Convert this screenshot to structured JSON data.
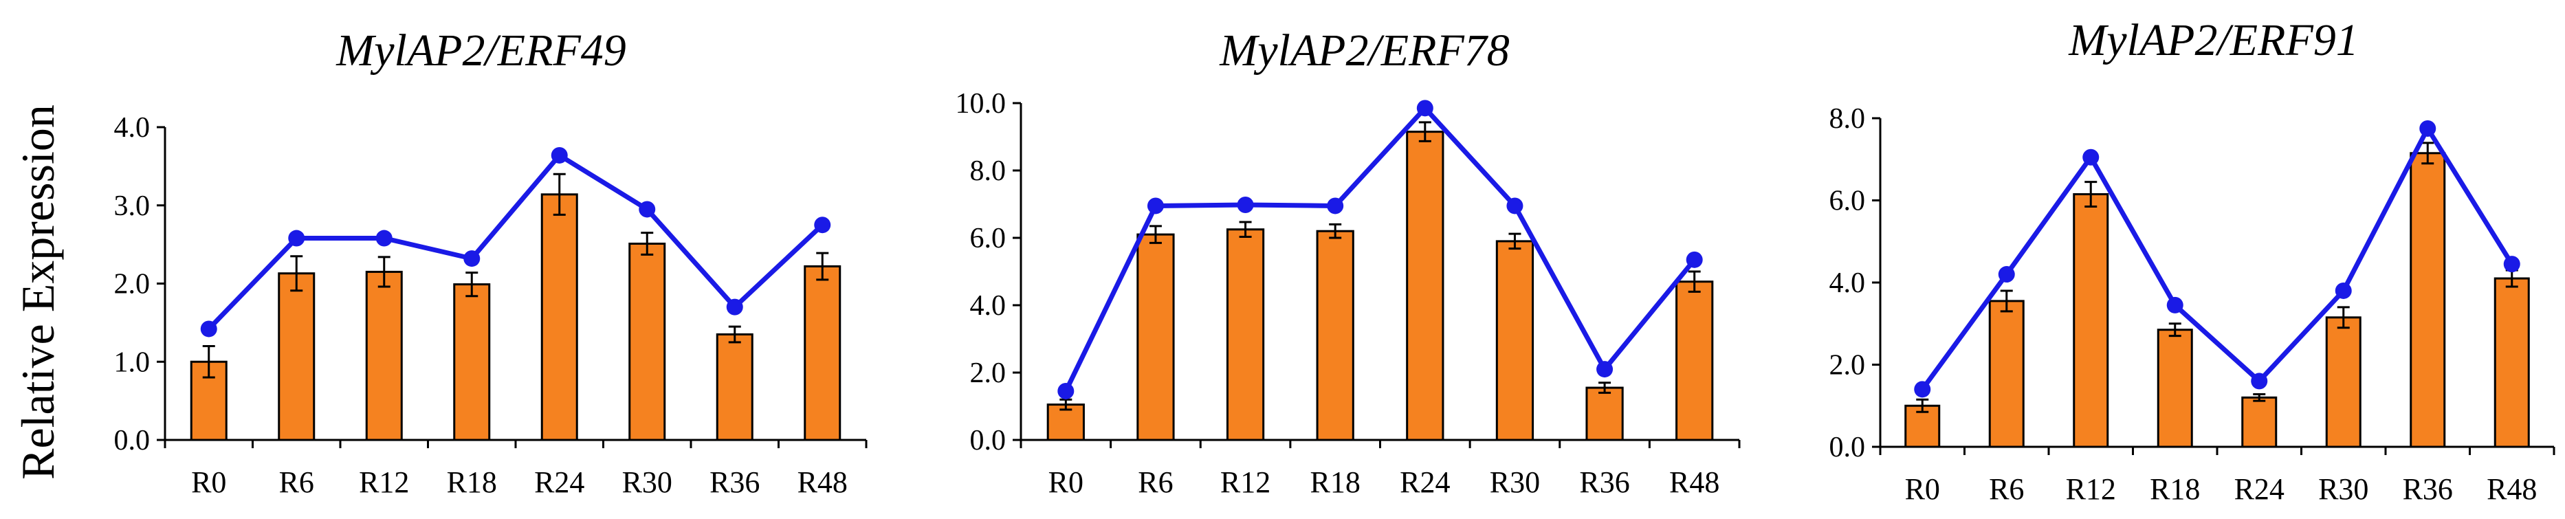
{
  "ylabel": "Relative Expression",
  "colors": {
    "bar": "#F58220",
    "line": "#1A1AE6",
    "axis": "#000000"
  },
  "chart_data": [
    {
      "type": "bar+line",
      "title": "MylAP2/ERF49",
      "ylabel": "Relative Expression",
      "categories": [
        "R0",
        "R6",
        "R12",
        "R18",
        "R24",
        "R30",
        "R36",
        "R48"
      ],
      "ylim": [
        0,
        4
      ],
      "yticks": [
        "0.0",
        "1.0",
        "2.0",
        "3.0",
        "4.0"
      ],
      "values": [
        1.0,
        2.13,
        2.15,
        1.99,
        3.14,
        2.51,
        1.35,
        2.22
      ],
      "errors": [
        0.2,
        0.22,
        0.19,
        0.15,
        0.26,
        0.14,
        0.1,
        0.17
      ],
      "line": [
        1.42,
        2.58,
        2.58,
        2.32,
        3.64,
        2.95,
        1.7,
        2.75
      ],
      "grid": false
    },
    {
      "type": "bar+line",
      "title": "MylAP2/ERF78",
      "categories": [
        "R0",
        "R6",
        "R12",
        "R18",
        "R24",
        "R30",
        "R36",
        "R48"
      ],
      "ylim": [
        0,
        10
      ],
      "yticks": [
        "0.0",
        "2.0",
        "4.0",
        "6.0",
        "8.0",
        "10.0"
      ],
      "values": [
        1.05,
        6.1,
        6.25,
        6.2,
        9.15,
        5.9,
        1.55,
        4.7
      ],
      "errors": [
        0.15,
        0.25,
        0.22,
        0.2,
        0.28,
        0.22,
        0.15,
        0.3
      ],
      "line": [
        1.45,
        6.95,
        6.98,
        6.95,
        9.85,
        6.95,
        2.1,
        5.35
      ],
      "grid": false
    },
    {
      "type": "bar+line",
      "title": "MylAP2/ERF91",
      "categories": [
        "R0",
        "R6",
        "R12",
        "R18",
        "R24",
        "R30",
        "R36",
        "R48"
      ],
      "ylim": [
        0,
        8
      ],
      "yticks": [
        "0.0",
        "2.0",
        "4.0",
        "6.0",
        "8.0"
      ],
      "values": [
        1.0,
        3.55,
        6.15,
        2.85,
        1.2,
        3.15,
        7.15,
        4.1
      ],
      "errors": [
        0.15,
        0.25,
        0.3,
        0.15,
        0.08,
        0.25,
        0.25,
        0.2
      ],
      "line": [
        1.4,
        4.2,
        7.05,
        3.45,
        1.6,
        3.8,
        7.75,
        4.45
      ],
      "grid": false
    }
  ]
}
